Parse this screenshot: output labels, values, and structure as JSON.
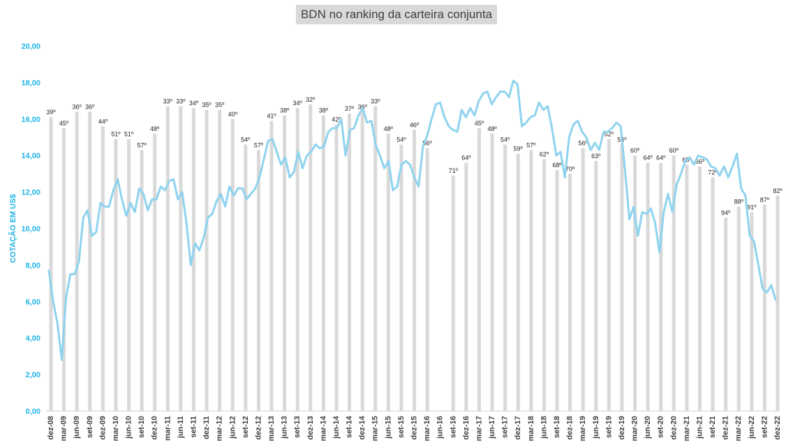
{
  "chart_data": {
    "type": "bar+line",
    "title": "BDN no ranking da carteira conjunta",
    "ylabel": "COTAÇÃO EM US$",
    "ylim": [
      0,
      20
    ],
    "yticks": [
      "0,00",
      "2,00",
      "4,00",
      "6,00",
      "8,00",
      "10,00",
      "12,00",
      "14,00",
      "16,00",
      "18,00",
      "20,00"
    ],
    "xticks": [
      "dez-08",
      "mar-09",
      "jun-09",
      "set-09",
      "dez-09",
      "mar-10",
      "jun-10",
      "set-10",
      "dez-10",
      "mar-11",
      "jun-11",
      "set-11",
      "dez-11",
      "mar-12",
      "jun-12",
      "set-12",
      "dez-12",
      "mar-13",
      "jun-13",
      "set-13",
      "dez-13",
      "mar-14",
      "jun-14",
      "set-14",
      "dez-14",
      "mar-15",
      "jun-15",
      "set-15",
      "dez-15",
      "mar-16",
      "jun-16",
      "set-16",
      "dez-16",
      "mar-17",
      "jun-17",
      "set-17",
      "dez-17",
      "mar-18",
      "jun-18",
      "set-18",
      "dez-18",
      "mar-19",
      "jun-19",
      "set-19",
      "dez-19",
      "mar-20",
      "jun-20",
      "set-20",
      "dez-20",
      "mar-21",
      "jun-21",
      "set-21",
      "dez-21",
      "mar-22",
      "jun-22",
      "set-22",
      "dez-22"
    ],
    "series": [
      {
        "kind": "bar",
        "color": "#d9d9d9",
        "comment_values_are_bar_heights_in_axis_units": true,
        "values": [
          16.1,
          15.5,
          16.4,
          16.4,
          15.6,
          14.9,
          14.9,
          14.3,
          15.2,
          16.7,
          16.7,
          16.6,
          16.5,
          16.5,
          16.0,
          14.6,
          14.3,
          15.9,
          16.2,
          16.6,
          16.8,
          16.2,
          15.7,
          16.3,
          16.4,
          16.7,
          15.2,
          14.6,
          15.4,
          14.4,
          null,
          12.9,
          13.6,
          15.5,
          15.2,
          14.6,
          14.1,
          14.3,
          13.8,
          13.2,
          13.0,
          14.4,
          13.7,
          14.9,
          14.6,
          14.0,
          13.6,
          13.6,
          14.0,
          13.5,
          13.4,
          12.8,
          10.6,
          11.2,
          10.9,
          11.3,
          11.8
        ],
        "labels": [
          "39º",
          "45º",
          "36º",
          "36º",
          "44º",
          "51º",
          "51º",
          "57º",
          "48º",
          "33º",
          "33º",
          "34º",
          "35º",
          "35º",
          "40º",
          "54º",
          "57º",
          "41º",
          "38º",
          "34º",
          "32º",
          "38º",
          "42º",
          "37º",
          "36º",
          "33º",
          "48º",
          "54º",
          "46º",
          "56º",
          "",
          "71º",
          "64º",
          "45º",
          "48º",
          "54º",
          "59º",
          "57º",
          "62º",
          "68º",
          "70º",
          "56º",
          "63º",
          "52º",
          "54º",
          "60º",
          "64º",
          "64º",
          "60º",
          "65º",
          "66º",
          "72º",
          "94º",
          "88º",
          "91º",
          "87º",
          "82º"
        ]
      },
      {
        "kind": "line",
        "color": "#8fd3ef",
        "values": [
          7.7,
          6.0,
          4.8,
          2.8,
          6.2,
          7.5,
          7.5,
          8.2,
          10.6,
          11.0,
          9.6,
          9.8,
          11.4,
          11.2,
          11.2,
          12.1,
          12.7,
          11.6,
          10.7,
          11.4,
          10.9,
          12.2,
          11.9,
          11.0,
          11.6,
          11.6,
          12.3,
          12.1,
          12.6,
          12.7,
          11.6,
          12.0,
          10.3,
          8.0,
          9.2,
          8.8,
          9.5,
          10.6,
          10.8,
          11.5,
          11.9,
          11.2,
          12.3,
          11.8,
          12.2,
          12.2,
          11.6,
          11.9,
          12.2,
          12.8,
          13.8,
          14.8,
          14.9,
          14.2,
          13.5,
          13.9,
          12.8,
          13.1,
          14.2,
          13.3,
          14.0,
          14.2,
          14.6,
          14.4,
          14.5,
          15.3,
          15.5,
          15.5,
          16.0,
          14.0,
          15.4,
          15.5,
          16.2,
          16.6,
          15.8,
          15.9,
          14.6,
          14.0,
          13.3,
          13.7,
          12.1,
          12.3,
          13.5,
          13.7,
          13.5,
          12.8,
          12.3,
          14.5,
          15.1,
          16.0,
          16.8,
          16.9,
          16.1,
          15.6,
          15.4,
          15.3,
          16.5,
          16.1,
          16.6,
          16.2,
          17.0,
          17.4,
          17.5,
          16.8,
          17.2,
          17.5,
          17.5,
          17.2,
          18.1,
          17.9,
          15.6,
          15.8,
          16.1,
          16.2,
          16.9,
          16.5,
          16.7,
          15.5,
          14.0,
          14.2,
          12.8,
          15.0,
          15.7,
          15.9,
          15.3,
          15.0,
          14.3,
          14.7,
          14.3,
          15.3,
          15.3,
          15.5,
          15.8,
          15.6,
          13.2,
          10.5,
          11.2,
          9.6,
          10.9,
          10.8,
          11.1,
          10.3,
          8.7,
          10.9,
          11.9,
          10.9,
          12.4,
          13.0,
          13.7,
          13.9,
          13.5,
          14.0,
          13.9,
          13.8,
          13.4,
          13.3,
          12.9,
          13.4,
          12.8,
          13.4,
          14.1,
          12.2,
          11.8,
          9.6,
          9.3,
          8.0,
          6.7,
          6.5,
          6.9,
          6.1
        ]
      }
    ],
    "grid": false,
    "legend": "none"
  }
}
